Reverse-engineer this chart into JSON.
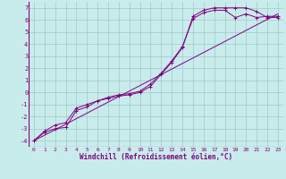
{
  "bg_color": "#c8ecec",
  "line_color": "#800080",
  "grid_color": "#a0c8c8",
  "xlabel": "Windchill (Refroidissement éolien,°C)",
  "xlabel_fontsize": 5.5,
  "xtick_fontsize": 4.5,
  "ytick_fontsize": 5.0,
  "xlim": [
    -0.5,
    23.5
  ],
  "ylim": [
    -4.5,
    7.5
  ],
  "xticks": [
    0,
    1,
    2,
    3,
    4,
    5,
    6,
    7,
    8,
    9,
    10,
    11,
    12,
    13,
    14,
    15,
    16,
    17,
    18,
    19,
    20,
    21,
    22,
    23
  ],
  "yticks": [
    -4,
    -3,
    -2,
    -1,
    0,
    1,
    2,
    3,
    4,
    5,
    6,
    7
  ],
  "line1_x": [
    0,
    1,
    2,
    3,
    4,
    5,
    6,
    7,
    8,
    9,
    10,
    11,
    12,
    13,
    14,
    15,
    16,
    17,
    18,
    19,
    20,
    21,
    22,
    23
  ],
  "line1_y": [
    -4.0,
    -3.3,
    -3.0,
    -2.9,
    -1.5,
    -1.2,
    -0.7,
    -0.5,
    -0.3,
    -0.2,
    0.0,
    0.5,
    1.5,
    2.5,
    3.7,
    6.3,
    6.8,
    7.0,
    7.0,
    7.0,
    7.0,
    6.7,
    6.2,
    6.2
  ],
  "line2_x": [
    0,
    1,
    2,
    3,
    4,
    5,
    6,
    7,
    8,
    9,
    10,
    11,
    12,
    13,
    14,
    15,
    16,
    17,
    18,
    19,
    20,
    21,
    22,
    23
  ],
  "line2_y": [
    -4.0,
    -3.2,
    -2.7,
    -2.5,
    -1.3,
    -1.0,
    -0.7,
    -0.4,
    -0.2,
    -0.1,
    0.1,
    0.7,
    1.6,
    2.6,
    3.8,
    6.1,
    6.6,
    6.8,
    6.8,
    6.2,
    6.5,
    6.2,
    6.3,
    6.3
  ],
  "line3_x": [
    0,
    23
  ],
  "line3_y": [
    -4.0,
    6.5
  ],
  "marker": "+"
}
